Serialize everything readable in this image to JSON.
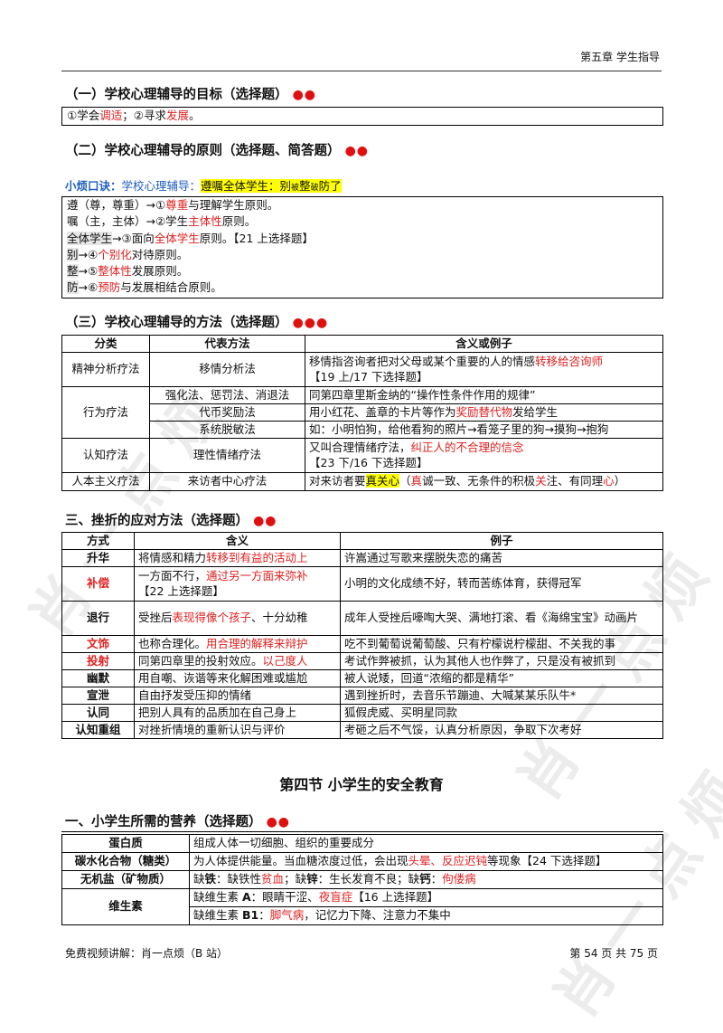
{
  "header": {
    "chapter": "第五章  学生指导"
  },
  "sec1": {
    "title": "（一）学校心理辅导的目标（选择题）",
    "dots": "●●",
    "box": {
      "p1": "①学会",
      "r1": "调适",
      "p2": "；②寻求",
      "r2": "发展",
      "p3": "。"
    }
  },
  "sec2": {
    "title": "（二）学校心理辅导的原则（选择题、简答题）",
    "dots": "●●",
    "mnemonic": {
      "label": "小烦口诀：",
      "lead": "学校心理辅导：",
      "part1": "遵嘱全体学生：别",
      "s1": "被",
      "part2": "整",
      "s2": "破",
      "part3": "防了"
    },
    "lines": [
      {
        "a": "遵（尊，尊重）→①",
        "r": "尊重",
        "b": "与理解学生原则。",
        "hl": false
      },
      {
        "a": "嘱（主，主体）→②学生",
        "r": "主体性",
        "b": "原则。",
        "hl": false
      },
      {
        "a": "全体学生",
        "a2": "→③面向",
        "r": "全体学生",
        "b": "原则。【21 上选择题】",
        "hl": true
      },
      {
        "a": "别",
        "a2": "→④",
        "r": "个别化",
        "b": "对待原则。",
        "hl": true
      },
      {
        "a": "整",
        "a2": "→⑤",
        "r": "整体性",
        "b": "发展原则。",
        "hl": true
      },
      {
        "a": "防",
        "a2": "→⑥",
        "r": "预防",
        "b": "与发展相结合原则。",
        "hl": true
      }
    ]
  },
  "sec3": {
    "title": "（三）学校心理辅导的方法（选择题）",
    "dots": "●●●",
    "headers": [
      "分类",
      "代表方法",
      "含义或例子"
    ],
    "rows": {
      "r1": {
        "cat": "精神分析疗法",
        "method": "移情分析法",
        "t1": "移情指咨询者把对父母或某个重要的人的情感",
        "r1": "转移给咨询师",
        "t2": "【19 上/17 下选择题】"
      },
      "cat2": "行为疗法",
      "r2a": {
        "method": "强化法、惩罚法、消退法",
        "t1": "同第四章里斯金纳的“操作性条件作用的规律”"
      },
      "r2b": {
        "method": "代币奖励法",
        "t1": "用小红花、盖章的卡片等作为",
        "r1": "奖励替代物",
        "t2": "发给学生"
      },
      "r2c": {
        "method": "系统脱敏法",
        "t1": "如：小明怕狗，给他看狗的照片→看笼子里的狗→摸狗→抱狗"
      },
      "r3": {
        "cat": "认知疗法",
        "method": "理性情绪疗法",
        "t1": "又叫合理情绪疗法，",
        "r1": "纠正人的不合理的信念",
        "t2": "【23 下/16 下选择题】"
      },
      "r4": {
        "cat": "人本主义疗法",
        "method": "来访者中心疗法",
        "t1": "对来访者要",
        "h1": "真关心",
        "t2": "（",
        "r2": "真",
        "t3": "诚一致、无条件的积极",
        "r3": "关",
        "t4": "注、有同理",
        "r4": "心",
        "t5": "）"
      }
    }
  },
  "sec4": {
    "title": "三、挫折的应对方法（选择题）",
    "dots": "●●",
    "headers": [
      "方式",
      "含义",
      "例子"
    ],
    "rows": [
      {
        "name": "升华",
        "red": false,
        "m1": "将情感和精力",
        "mr": "转移到有益的活动上",
        "m2": "",
        "ex": "许嵩通过写歌来摆脱失恋的痛苦"
      },
      {
        "name": "补偿",
        "red": true,
        "m1": "一方面不行，",
        "mr": "通过另一方面来弥补",
        "m2": "【22 上选择题】",
        "ex": "小明的文化成绩不好，转而苦练体育，获得冠军"
      },
      {
        "name": "退行",
        "red": false,
        "m1": "受挫后",
        "mr": "表现得像个孩子",
        "m2": "、十分幼稚",
        "ex": "成年人受挫后嚎啕大哭、满地打滚、看《海绵宝宝》动画片"
      },
      {
        "name": "文饰",
        "red": true,
        "m1": "也称合理化。",
        "mr": "用合理的解释来辩护",
        "m2": "",
        "ex": "吃不到葡萄说葡萄酸、只有柠檬说柠檬甜、不关我的事"
      },
      {
        "name": "投射",
        "red": true,
        "m1": "同第四章里的投射效应。",
        "mr": "以己度人",
        "m2": "",
        "ex": "考试作弊被抓，认为其他人也作弊了，只是没有被抓到"
      },
      {
        "name": "幽默",
        "red": false,
        "m1": "用自嘲、诙谐等来化解困难或尴尬",
        "mr": "",
        "m2": "",
        "ex": "被人说矮，回道“浓缩的都是精华”"
      },
      {
        "name": "宣泄",
        "red": false,
        "m1": "自由抒发受压抑的情绪",
        "mr": "",
        "m2": "",
        "ex": "遇到挫折时，去音乐节蹦迪、大喊某某乐队牛*"
      },
      {
        "name": "认同",
        "red": false,
        "m1": "把别人具有的品质加在自己身上",
        "mr": "",
        "m2": "",
        "ex": "狐假虎威、买明星同款"
      },
      {
        "name": "认知重组",
        "red": false,
        "m1": "对挫折情境的重新认识与评价",
        "mr": "",
        "m2": "",
        "ex": "考砸之后不气馁，认真分析原因，争取下次考好"
      }
    ]
  },
  "section4_title": "第四节  小学生的安全教育",
  "sec5": {
    "title": "一、小学生所需的营养（选择题）",
    "dots": "●●",
    "protein": {
      "name": "蛋白质",
      "desc": "组成人体一切细胞、组织的重要成分"
    },
    "carb": {
      "name": "碳水化合物（糖类）",
      "t1": "为人体提供能量。当血糖浓度过低，会出现",
      "r1": "头晕、反应迟钝",
      "t2": "等现象【24 下选择题】"
    },
    "mineral": {
      "name": "无机盐（矿物质）",
      "b1": "缺",
      "k1": "铁",
      "t1": "：缺铁性",
      "r1": "贫血",
      "t2": "；缺",
      "k2": "锌",
      "t3": "：生长发育不良；缺",
      "k3": "钙",
      "t4": "：",
      "r3": "佝偻病"
    },
    "vitamin": {
      "name": "维生素",
      "a": {
        "t1": "缺维生素 ",
        "k": "A",
        "t2": "：眼睛干涩、",
        "r": "夜盲症",
        "t3": "【16 上选择题】"
      },
      "b": {
        "t1": "缺维生素 ",
        "k": "B1",
        "t2": "：",
        "r": "脚气病",
        "t3": "，记忆力下降、注意力不集中"
      }
    }
  },
  "footer": {
    "left": "免费视频讲解：肖一点烦（B 站）",
    "right": "第  54  页  共  75  页"
  },
  "watermark": "肖一点烦"
}
